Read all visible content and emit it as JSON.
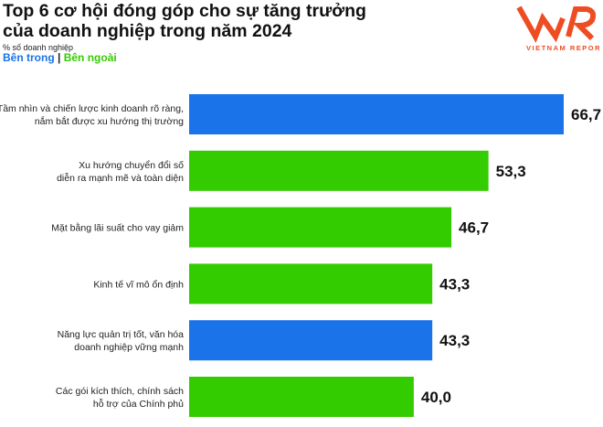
{
  "chart_data": {
    "type": "bar",
    "orientation": "horizontal",
    "title": "Top 6 cơ hội đóng góp cho sự tăng trưởng của doanh nghiệp trong năm 2024",
    "subtitle": "% số doanh nghiệp",
    "legend": [
      {
        "name": "Bên trong",
        "color": "#1a73e8"
      },
      {
        "name": "Bên ngoài",
        "color": "#33cc00"
      }
    ],
    "legend_separator": "|",
    "categories": [
      [
        "Tầm nhìn và chiến lược kinh doanh rõ ràng,",
        "nắm bắt được xu hướng thị trường"
      ],
      [
        "Xu hướng chuyển đổi số",
        "diễn ra mạnh mẽ và toàn diện"
      ],
      [
        "Mặt bằng lãi suất cho vay giảm"
      ],
      [
        "Kinh tế vĩ mô ổn định"
      ],
      [
        "Năng lực quản trị tốt, văn hóa",
        "doanh nghiệp vững mạnh"
      ],
      [
        "Các gói kích thích, chính sách",
        "hỗ trợ của Chính phủ"
      ]
    ],
    "values": [
      66.7,
      53.3,
      46.7,
      43.3,
      43.3,
      40.0
    ],
    "value_labels": [
      "66,7",
      "53,3",
      "46,7",
      "43,3",
      "43,3",
      "40,0"
    ],
    "groups": [
      "Bên trong",
      "Bên ngoài",
      "Bên ngoài",
      "Bên ngoài",
      "Bên trong",
      "Bên ngoài"
    ],
    "xlim": [
      0,
      66.7
    ],
    "grid": false
  },
  "logo": {
    "text": "VNR",
    "subtext": "VIETNAM REPORT",
    "color": "#ee4d23"
  }
}
